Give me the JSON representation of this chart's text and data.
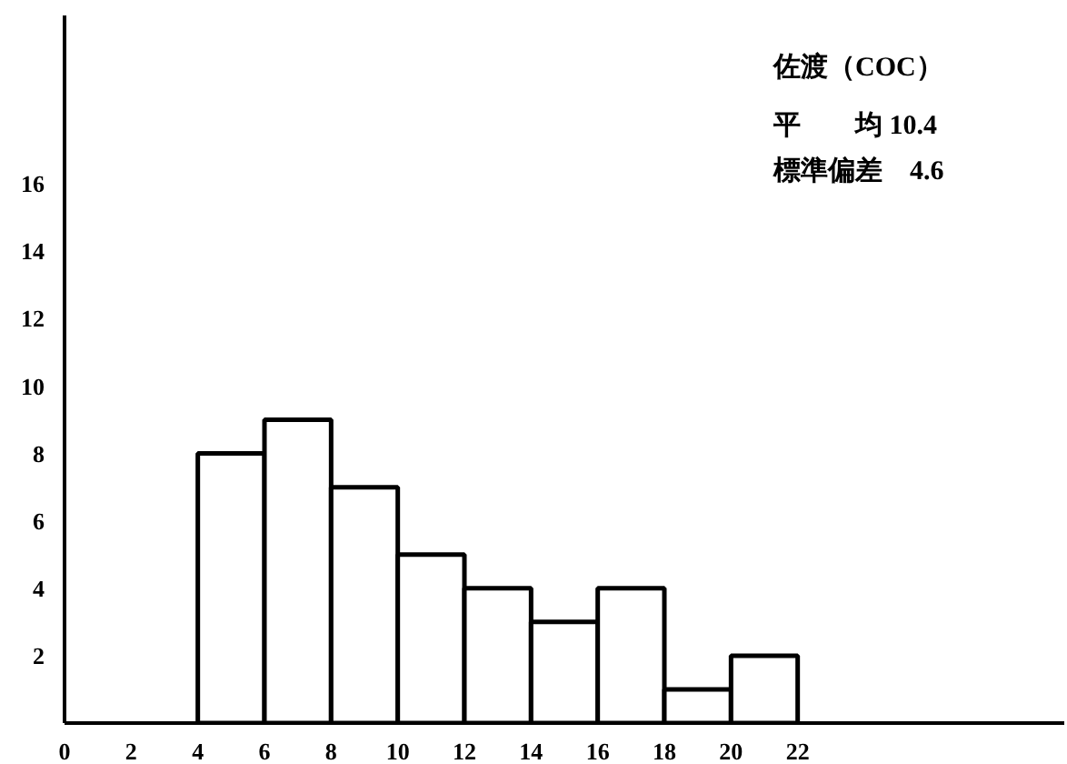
{
  "chart_data": {
    "type": "histogram",
    "bins": [
      4,
      6,
      8,
      10,
      12,
      14,
      16,
      18,
      20,
      22
    ],
    "values": [
      8,
      9,
      7,
      5,
      4,
      3,
      4,
      1,
      2
    ],
    "color": "#ffffff",
    "xlim": [
      0,
      30
    ],
    "ylim": [
      0,
      21
    ],
    "xticks": [
      0,
      2,
      4,
      6,
      8,
      10,
      12,
      14,
      16,
      18,
      20,
      22
    ],
    "yticks": [
      2,
      4,
      6,
      8,
      10,
      12,
      14,
      16
    ],
    "grid": false,
    "annotations": [
      "佐渡（COC）",
      "平　　均 10.4",
      "標準偏差　4.6"
    ]
  }
}
